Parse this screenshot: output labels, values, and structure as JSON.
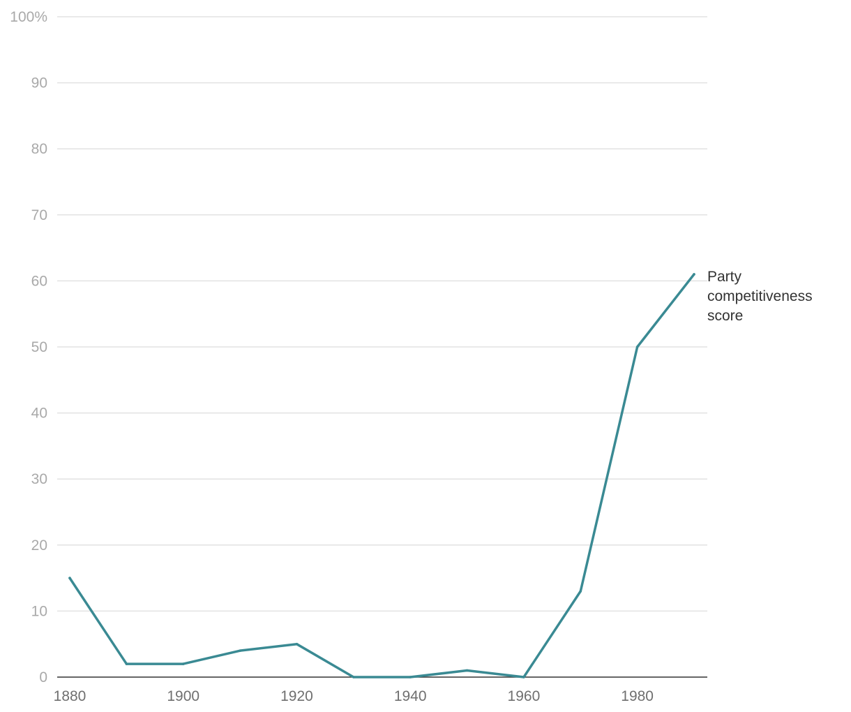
{
  "chart_data": {
    "type": "line",
    "title": "",
    "xlabel": "",
    "ylabel": "",
    "xlim": [
      1880,
      1990
    ],
    "ylim": [
      0,
      100
    ],
    "grid": true,
    "x_ticks": [
      "1880",
      "1900",
      "1920",
      "1940",
      "1960",
      "1980"
    ],
    "y_ticks": [
      "0",
      "10",
      "20",
      "30",
      "40",
      "50",
      "60",
      "70",
      "80",
      "90",
      "100%"
    ],
    "x": [
      1880,
      1890,
      1900,
      1910,
      1920,
      1930,
      1940,
      1950,
      1960,
      1970,
      1980,
      1990
    ],
    "series": [
      {
        "name": "Party competitiveness score",
        "label_lines": [
          "Party",
          "competitiveness",
          "score"
        ],
        "color": "#3a8a93",
        "values": [
          15,
          2,
          2,
          4,
          5,
          0,
          0,
          1,
          0,
          13,
          50,
          61
        ]
      }
    ]
  }
}
